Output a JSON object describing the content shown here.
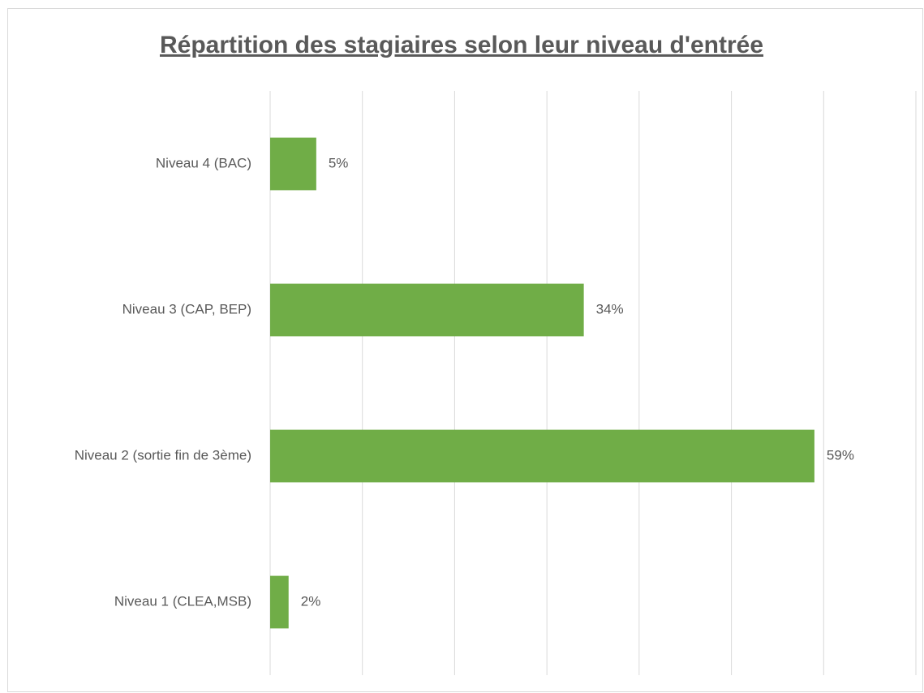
{
  "chart_data": {
    "type": "bar",
    "orientation": "horizontal",
    "title": "Répartition des stagiaires selon leur niveau d'entrée",
    "categories": [
      "Niveau 4 (BAC)",
      "Niveau 3 (CAP, BEP)",
      "Niveau 2 (sortie fin de 3ème)",
      "Niveau 1 (CLEA,MSB)"
    ],
    "values": [
      5,
      34,
      59,
      2
    ],
    "value_labels": [
      "5%",
      "34%",
      "59%",
      "2%"
    ],
    "color": "#70ad47",
    "xlim": [
      0,
      70
    ],
    "xticks": [
      0,
      10,
      20,
      30,
      40,
      50,
      60,
      70
    ],
    "grid": true
  }
}
